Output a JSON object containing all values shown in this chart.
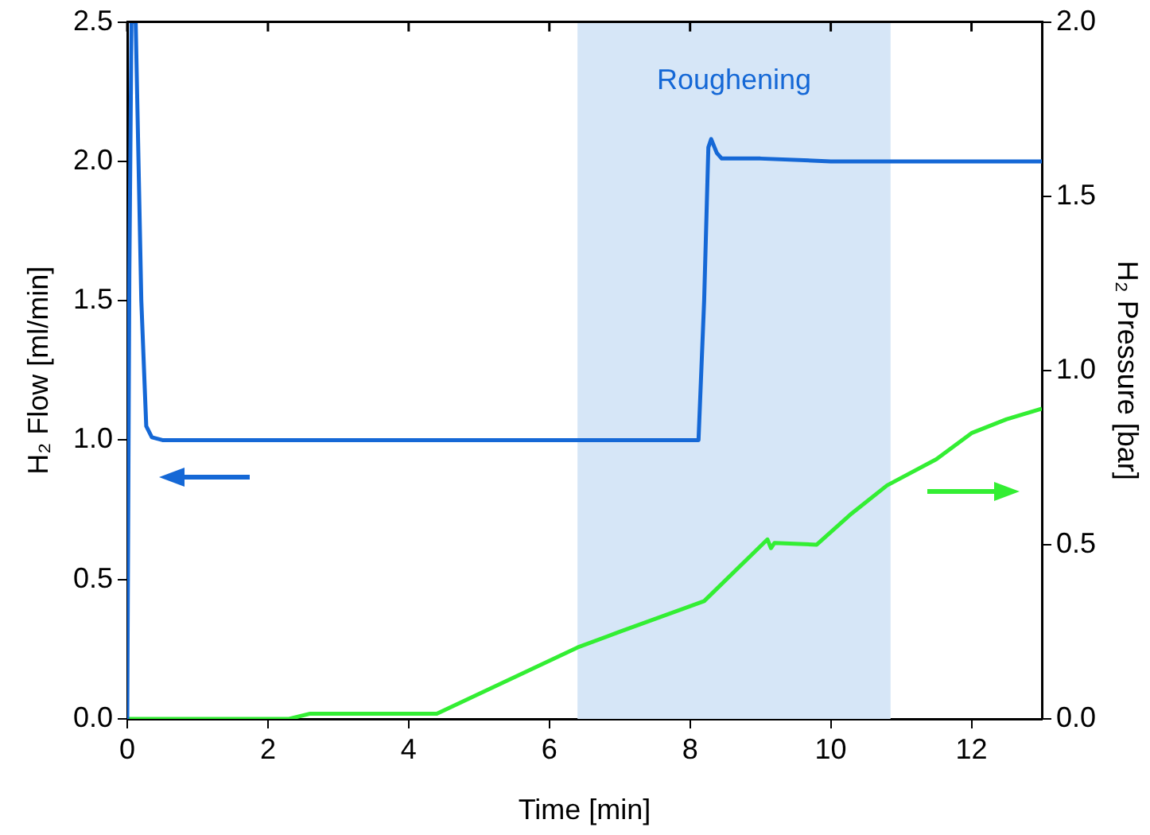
{
  "chart_data": {
    "type": "line",
    "xlabel": "Time [min]",
    "ylabel": "H₂ Flow [ml/min]",
    "y2label": "H₂ Pressure [bar]",
    "xlim": [
      0,
      13
    ],
    "xticks": [
      0,
      2,
      4,
      6,
      8,
      10,
      12
    ],
    "ylim": [
      0,
      2.5
    ],
    "yticks": [
      {
        "value": 0,
        "label": "0.0"
      },
      0.5,
      {
        "value": 1,
        "label": "1.0"
      },
      1.5,
      {
        "value": 2,
        "label": "2.0"
      },
      2.5
    ],
    "y2lim": [
      0,
      2.0
    ],
    "y2ticks": [
      {
        "value": 0,
        "label": "0.0"
      },
      0.5,
      {
        "value": 1,
        "label": "1.0"
      },
      1.5,
      {
        "value": 2,
        "label": "2.0"
      }
    ],
    "grid": false,
    "legend": false,
    "marker": "none",
    "line_style": "solid",
    "bands": [
      {
        "axis": "x",
        "from": 6.4,
        "to": 10.85,
        "label": "Roughening",
        "color": "#d6e6f7"
      }
    ],
    "series": [
      {
        "axis": "y",
        "color": "#1568d6",
        "x": [
          0,
          0.03,
          0.06,
          0.12,
          0.2,
          0.27,
          0.35,
          0.5,
          8.12,
          8.2,
          8.26,
          8.3,
          8.38,
          8.45,
          9,
          10,
          13
        ],
        "values": [
          0,
          1.6,
          2.5,
          2.5,
          1.5,
          1.05,
          1.01,
          1.0,
          1.0,
          1.5,
          2.05,
          2.08,
          2.03,
          2.01,
          2.01,
          2.0,
          2.0
        ]
      },
      {
        "axis": "y2",
        "color": "#33ee33",
        "x": [
          0,
          2.3,
          2.6,
          4.4,
          6.4,
          7,
          8.2,
          9.1,
          9.15,
          9.2,
          9.8,
          10.3,
          10.8,
          11.5,
          12,
          12.5,
          13
        ],
        "values": [
          0,
          0,
          0.015,
          0.015,
          0.205,
          0.25,
          0.338,
          0.515,
          0.49,
          0.505,
          0.5,
          0.59,
          0.67,
          0.745,
          0.82,
          0.86,
          0.89
        ]
      }
    ]
  }
}
